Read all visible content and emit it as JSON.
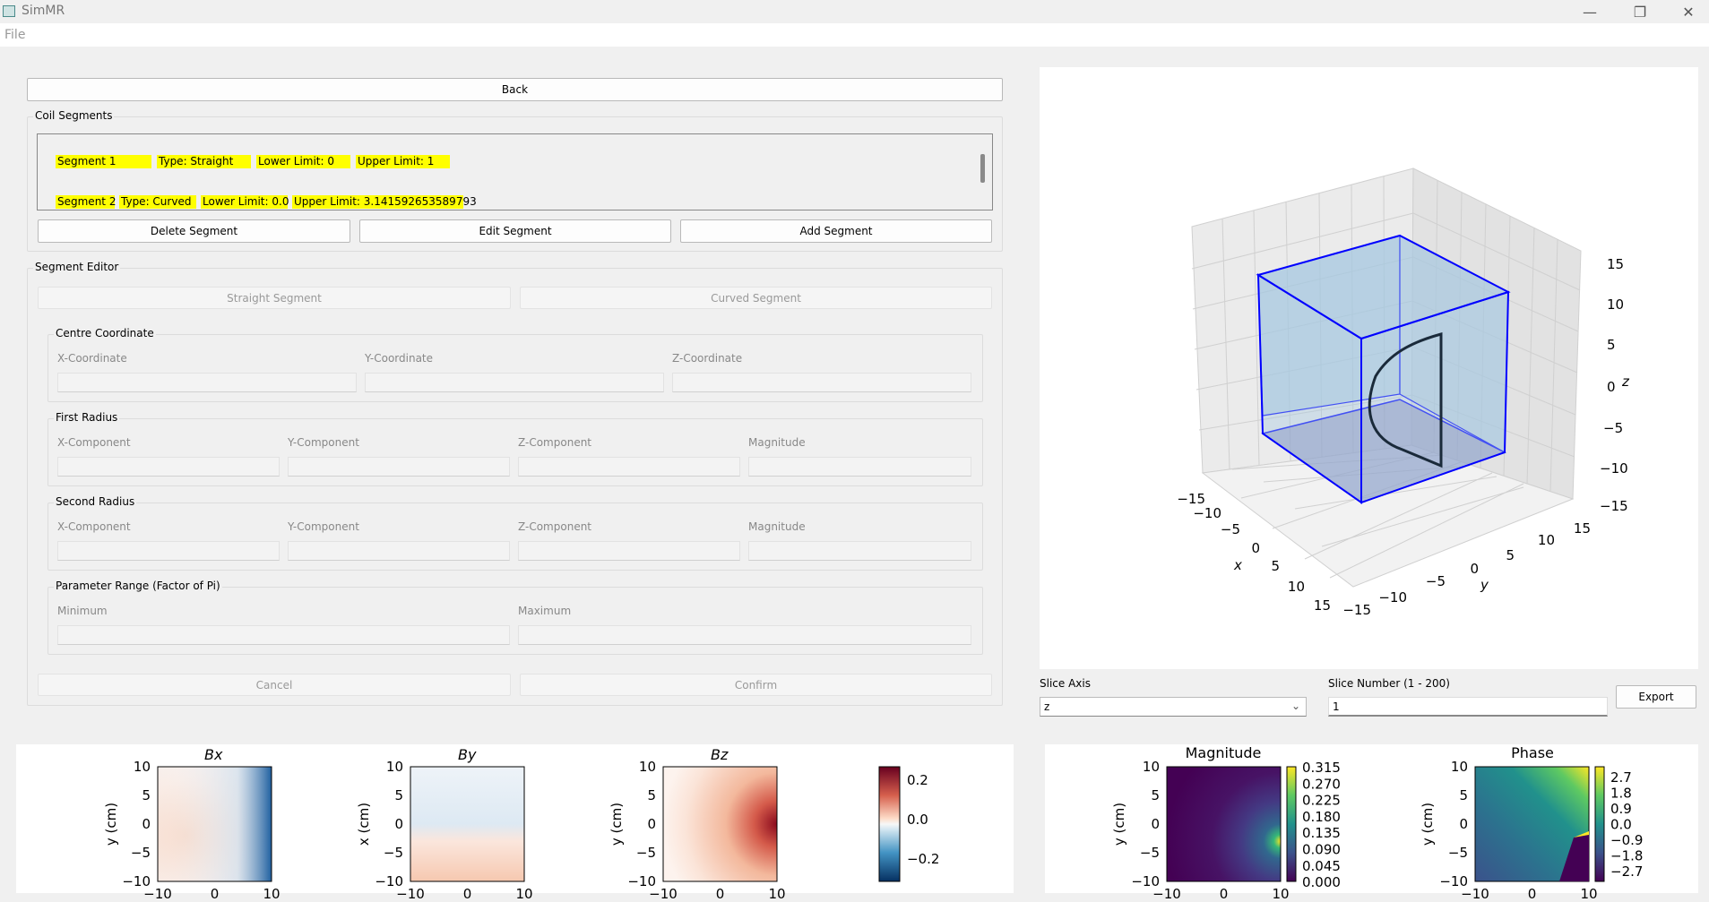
{
  "window": {
    "title": "SimMR",
    "minimize": "—",
    "maximize": "❐",
    "close": "✕"
  },
  "menu": {
    "file": "File"
  },
  "back_label": "Back",
  "coil_segments": {
    "title": "Coil Segments",
    "items": [
      {
        "segment": "Segment 1",
        "type": "Type: Straight",
        "lower": "Lower Limit: 0",
        "upper": "Upper Limit: 1"
      },
      {
        "segment": "Segment 2",
        "type": "Type: Curved",
        "lower": "Lower Limit: 0.0",
        "upper": "Upper Limit: 3.141592653589793"
      }
    ],
    "delete_label": "Delete Segment",
    "edit_label": "Edit Segment",
    "add_label": "Add Segment"
  },
  "editor": {
    "title": "Segment Editor",
    "straight_label": "Straight Segment",
    "curved_label": "Curved Segment",
    "centre": {
      "title": "Centre Coordinate",
      "x": "X-Coordinate",
      "y": "Y-Coordinate",
      "z": "Z-Coordinate"
    },
    "first_radius": {
      "title": "First Radius",
      "x": "X-Component",
      "y": "Y-Component",
      "z": "Z-Component",
      "mag": "Magnitude"
    },
    "second_radius": {
      "title": "Second Radius",
      "x": "X-Component",
      "y": "Y-Component",
      "z": "Z-Component",
      "mag": "Magnitude"
    },
    "param_range": {
      "title": "Parameter Range (Factor of Pi)",
      "min": "Minimum",
      "max": "Maximum"
    },
    "cancel_label": "Cancel",
    "confirm_label": "Confirm"
  },
  "plot3d": {
    "z_ticks": [
      "15",
      "10",
      "5",
      "0",
      "−5",
      "−10",
      "−15"
    ],
    "x_ticks": [
      "−15",
      "−10",
      "−5",
      "0",
      "5",
      "10",
      "15"
    ],
    "y_ticks": [
      "−15",
      "−10",
      "−5",
      "0",
      "5",
      "10",
      "15"
    ],
    "xlabel": "x",
    "ylabel": "y",
    "zlabel": "z"
  },
  "slice": {
    "axis_label": "Slice Axis",
    "axis_value": "z",
    "number_label": "Slice Number (1 - 200)",
    "number_value": "1",
    "export_label": "Export"
  },
  "field_plots": {
    "bx_title": "Bx",
    "by_title": "By",
    "bz_title": "Bz",
    "bx_ylabel": "y (cm)",
    "by_ylabel": "x (cm)",
    "bz_ylabel": "y (cm)",
    "yticks": [
      "10",
      "5",
      "0",
      "−5",
      "−10"
    ],
    "xticks": [
      "−10",
      "0",
      "10"
    ],
    "colorbar_ticks": [
      "0.2",
      "0.0",
      "−0.2"
    ]
  },
  "mag_plot": {
    "title": "Magnitude",
    "ylabel": "y (cm)",
    "colorbar_ticks": [
      "0.315",
      "0.270",
      "0.225",
      "0.180",
      "0.135",
      "0.090",
      "0.045",
      "0.000"
    ]
  },
  "phase_plot": {
    "title": "Phase",
    "ylabel": "y (cm)",
    "colorbar_ticks": [
      "2.7",
      "1.8",
      "0.9",
      "0.0",
      "−0.9",
      "−1.8",
      "−2.7"
    ]
  },
  "colors": {
    "highlight": "#ffff00",
    "coil": "#0000ff",
    "box_fill": "#a6c8e0"
  }
}
